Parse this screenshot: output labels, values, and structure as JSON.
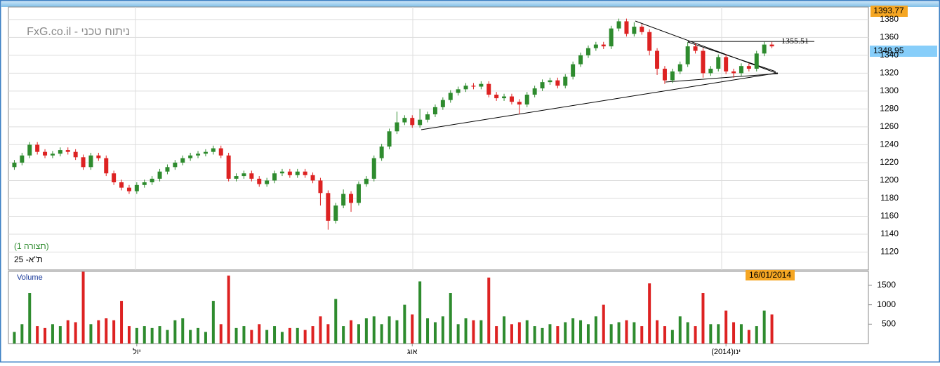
{
  "chart_data": {
    "type": "candlestick",
    "title": "FxG.co.il - ניתוח טכני",
    "subtitle": "(תצורה 1)",
    "instrument": "ת\"א- 25",
    "volume_label": "Volume",
    "date_label": "16/01/2014",
    "high_label": "1393.77",
    "last_price_label": "1348.95",
    "annotation": {
      "value": 1355.51,
      "label": "1355.51"
    },
    "up_color": "#2e8b2e",
    "down_color": "#dd2222",
    "ylim": [
      1100,
      1394
    ],
    "yticks": [
      1120,
      1140,
      1160,
      1180,
      1200,
      1220,
      1240,
      1260,
      1280,
      1300,
      1320,
      1340,
      1360,
      1380
    ],
    "vlim": [
      0,
      1860
    ],
    "vticks": [
      500,
      1000,
      1500
    ],
    "x_labels": [
      {
        "index": 16,
        "label": "יול"
      },
      {
        "index": 52,
        "label": "אוג"
      },
      {
        "index": 93,
        "label": "ינו(2014)"
      }
    ],
    "open": [
      1215,
      1220,
      1228,
      1240,
      1232,
      1228,
      1230,
      1234,
      1232,
      1226,
      1215,
      1228,
      1225,
      1208,
      1198,
      1192,
      1188,
      1195,
      1198,
      1202,
      1210,
      1215,
      1220,
      1225,
      1228,
      1230,
      1232,
      1236,
      1228,
      1202,
      1205,
      1208,
      1202,
      1196,
      1200,
      1208,
      1210,
      1206,
      1210,
      1206,
      1200,
      1186,
      1155,
      1172,
      1185,
      1175,
      1196,
      1202,
      1225,
      1238,
      1255,
      1265,
      1270,
      1262,
      1268,
      1274,
      1282,
      1290,
      1298,
      1302,
      1306,
      1305,
      1308,
      1296,
      1292,
      1294,
      1288,
      1285,
      1296,
      1303,
      1310,
      1312,
      1306,
      1316,
      1330,
      1340,
      1348,
      1352,
      1350,
      1370,
      1378,
      1364,
      1372,
      1366,
      1345,
      1325,
      1312,
      1322,
      1330,
      1350,
      1345,
      1320,
      1325,
      1338,
      1322,
      1320,
      1328,
      1325,
      1342,
      1352
    ],
    "high": [
      1223,
      1231,
      1243,
      1243,
      1235,
      1233,
      1237,
      1237,
      1235,
      1229,
      1231,
      1231,
      1228,
      1211,
      1201,
      1195,
      1198,
      1201,
      1205,
      1213,
      1218,
      1223,
      1228,
      1231,
      1233,
      1235,
      1239,
      1239,
      1231,
      1208,
      1211,
      1211,
      1205,
      1203,
      1211,
      1213,
      1213,
      1213,
      1213,
      1209,
      1203,
      1189,
      1175,
      1190,
      1188,
      1199,
      1205,
      1228,
      1241,
      1258,
      1277,
      1273,
      1273,
      1280,
      1277,
      1285,
      1293,
      1301,
      1305,
      1309,
      1309,
      1311,
      1311,
      1299,
      1297,
      1297,
      1291,
      1299,
      1306,
      1313,
      1315,
      1315,
      1319,
      1333,
      1343,
      1351,
      1355,
      1355,
      1373,
      1381,
      1381,
      1377,
      1375,
      1369,
      1348,
      1328,
      1325,
      1333,
      1355,
      1353,
      1348,
      1328,
      1341,
      1341,
      1325,
      1331,
      1331,
      1345,
      1355,
      1355
    ],
    "low": [
      1212,
      1217,
      1225,
      1229,
      1225,
      1225,
      1227,
      1229,
      1223,
      1212,
      1212,
      1222,
      1205,
      1195,
      1189,
      1185,
      1185,
      1192,
      1195,
      1199,
      1207,
      1212,
      1217,
      1222,
      1225,
      1227,
      1229,
      1225,
      1199,
      1199,
      1202,
      1199,
      1193,
      1193,
      1197,
      1205,
      1203,
      1203,
      1203,
      1197,
      1172,
      1145,
      1152,
      1169,
      1165,
      1172,
      1193,
      1199,
      1222,
      1235,
      1252,
      1262,
      1259,
      1259,
      1265,
      1271,
      1279,
      1287,
      1295,
      1299,
      1302,
      1302,
      1293,
      1289,
      1289,
      1285,
      1274,
      1282,
      1293,
      1300,
      1307,
      1303,
      1303,
      1313,
      1327,
      1337,
      1345,
      1347,
      1347,
      1367,
      1361,
      1361,
      1363,
      1340,
      1318,
      1308,
      1309,
      1319,
      1327,
      1342,
      1315,
      1317,
      1322,
      1319,
      1315,
      1317,
      1322,
      1322,
      1339,
      1348
    ],
    "close": [
      1220,
      1228,
      1240,
      1232,
      1228,
      1230,
      1234,
      1232,
      1226,
      1215,
      1228,
      1225,
      1208,
      1198,
      1192,
      1188,
      1195,
      1198,
      1202,
      1210,
      1215,
      1220,
      1225,
      1228,
      1230,
      1232,
      1236,
      1228,
      1202,
      1205,
      1208,
      1202,
      1196,
      1200,
      1208,
      1210,
      1206,
      1210,
      1206,
      1200,
      1186,
      1155,
      1172,
      1185,
      1175,
      1196,
      1202,
      1225,
      1238,
      1255,
      1265,
      1270,
      1262,
      1268,
      1274,
      1282,
      1290,
      1298,
      1302,
      1306,
      1305,
      1308,
      1296,
      1292,
      1294,
      1288,
      1285,
      1296,
      1303,
      1310,
      1312,
      1306,
      1316,
      1330,
      1340,
      1348,
      1352,
      1350,
      1370,
      1378,
      1364,
      1372,
      1366,
      1345,
      1325,
      1312,
      1322,
      1330,
      1350,
      1345,
      1320,
      1325,
      1338,
      1322,
      1320,
      1328,
      1325,
      1342,
      1352,
      1350
    ],
    "volume": [
      300,
      500,
      1300,
      450,
      400,
      500,
      450,
      600,
      550,
      1850,
      500,
      600,
      650,
      600,
      1100,
      450,
      400,
      450,
      400,
      450,
      350,
      600,
      650,
      350,
      400,
      300,
      1100,
      500,
      1750,
      400,
      450,
      350,
      500,
      350,
      450,
      300,
      400,
      400,
      350,
      450,
      700,
      500,
      1150,
      450,
      600,
      500,
      650,
      700,
      500,
      700,
      600,
      1000,
      750,
      1600,
      650,
      550,
      700,
      1300,
      500,
      650,
      600,
      600,
      1700,
      450,
      700,
      500,
      550,
      600,
      450,
      400,
      500,
      450,
      550,
      650,
      600,
      500,
      700,
      1000,
      500,
      550,
      600,
      550,
      450,
      1550,
      600,
      450,
      350,
      700,
      550,
      450,
      1300,
      500,
      500,
      850,
      550,
      500,
      350,
      450,
      850,
      750
    ]
  }
}
